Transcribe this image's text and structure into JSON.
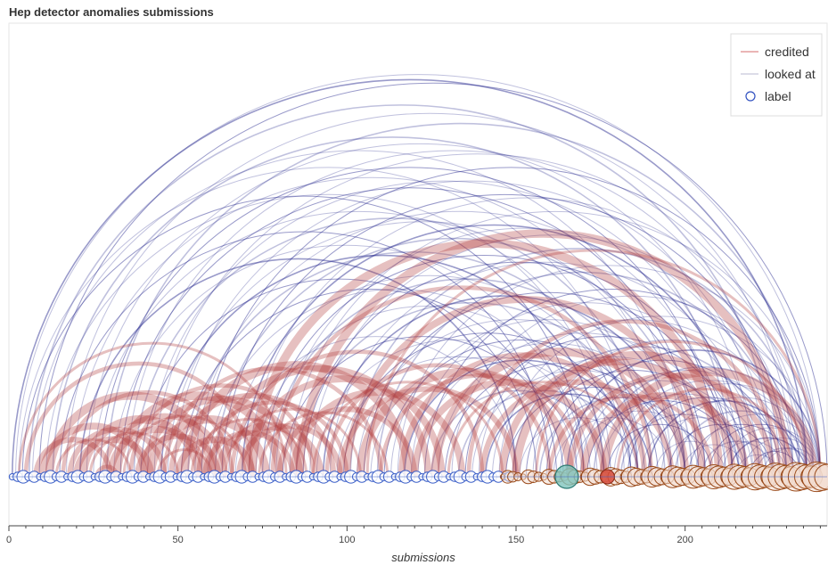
{
  "chart_data": {
    "type": "arc",
    "title": "Hep detector anomalies submissions",
    "xlabel": "submissions",
    "ylabel": "",
    "xlim": [
      0,
      242
    ],
    "x_ticks": [
      0,
      50,
      100,
      150,
      200
    ],
    "legend": {
      "placement": "top-right",
      "entries": [
        {
          "name": "credited",
          "marker": "line",
          "color": "#c0392b"
        },
        {
          "name": "looked at",
          "marker": "line",
          "color": "#a9a9c9"
        },
        {
          "name": "label",
          "marker": "circle",
          "color": "#3050c0"
        }
      ]
    },
    "series": [
      {
        "name": "credited",
        "color": "#b03a3a",
        "arcs": [
          [
            3,
            82
          ],
          [
            5,
            72
          ],
          [
            8,
            30
          ],
          [
            10,
            40
          ],
          [
            12,
            60
          ],
          [
            14,
            36
          ],
          [
            16,
            66
          ],
          [
            18,
            46
          ],
          [
            20,
            42
          ],
          [
            22,
            56
          ],
          [
            24,
            50
          ],
          [
            26,
            32
          ],
          [
            28,
            64
          ],
          [
            30,
            58
          ],
          [
            32,
            80
          ],
          [
            34,
            70
          ],
          [
            36,
            90
          ],
          [
            38,
            62
          ],
          [
            40,
            86
          ],
          [
            42,
            76
          ],
          [
            44,
            60
          ],
          [
            46,
            110
          ],
          [
            48,
            96
          ],
          [
            50,
            72
          ],
          [
            52,
            118
          ],
          [
            54,
            88
          ],
          [
            56,
            100
          ],
          [
            58,
            84
          ],
          [
            60,
            124
          ],
          [
            62,
            92
          ],
          [
            64,
            104
          ],
          [
            66,
            140
          ],
          [
            68,
            98
          ],
          [
            70,
            128
          ],
          [
            72,
            210
          ],
          [
            74,
            112
          ],
          [
            78,
            190
          ],
          [
            80,
            120
          ],
          [
            84,
            134
          ],
          [
            86,
            230
          ],
          [
            90,
            146
          ],
          [
            94,
            160
          ],
          [
            98,
            150
          ],
          [
            100,
            205
          ],
          [
            104,
            166
          ],
          [
            106,
            240
          ],
          [
            110,
            170
          ],
          [
            116,
            188
          ],
          [
            120,
            176
          ],
          [
            126,
            200
          ],
          [
            130,
            186
          ],
          [
            136,
            228
          ],
          [
            140,
            196
          ],
          [
            146,
            214
          ],
          [
            150,
            222
          ],
          [
            156,
            236
          ],
          [
            160,
            208
          ],
          [
            166,
            226
          ],
          [
            170,
            218
          ],
          [
            176,
            238
          ],
          [
            180,
            232
          ]
        ]
      },
      {
        "name": "looked at",
        "color": "#1d1f8a",
        "arcs": [
          [
            1,
            236
          ],
          [
            2,
            240
          ],
          [
            3,
            186
          ],
          [
            4,
            170
          ],
          [
            6,
            226
          ],
          [
            7,
            200
          ],
          [
            9,
            242
          ],
          [
            11,
            178
          ],
          [
            13,
            214
          ],
          [
            15,
            160
          ],
          [
            17,
            232
          ],
          [
            19,
            196
          ],
          [
            21,
            150
          ],
          [
            23,
            220
          ],
          [
            25,
            182
          ],
          [
            27,
            210
          ],
          [
            29,
            238
          ],
          [
            31,
            168
          ],
          [
            33,
            204
          ],
          [
            35,
            228
          ],
          [
            37,
            190
          ],
          [
            39,
            156
          ],
          [
            41,
            216
          ],
          [
            43,
            234
          ],
          [
            45,
            176
          ],
          [
            47,
            198
          ],
          [
            49,
            224
          ],
          [
            51,
            162
          ],
          [
            53,
            186
          ],
          [
            55,
            212
          ],
          [
            57,
            240
          ],
          [
            59,
            170
          ],
          [
            61,
            202
          ],
          [
            63,
            230
          ],
          [
            65,
            184
          ],
          [
            67,
            150
          ],
          [
            69,
            218
          ],
          [
            71,
            236
          ],
          [
            73,
            174
          ],
          [
            75,
            206
          ],
          [
            77,
            194
          ],
          [
            79,
            226
          ],
          [
            81,
            164
          ],
          [
            83,
            240
          ],
          [
            85,
            188
          ],
          [
            87,
            214
          ],
          [
            89,
            232
          ],
          [
            91,
            172
          ],
          [
            93,
            200
          ],
          [
            95,
            222
          ],
          [
            97,
            168
          ],
          [
            99,
            184
          ],
          [
            101,
            236
          ],
          [
            103,
            196
          ],
          [
            105,
            214
          ],
          [
            107,
            178
          ],
          [
            109,
            230
          ],
          [
            111,
            192
          ],
          [
            113,
            206
          ],
          [
            115,
            240
          ],
          [
            117,
            186
          ],
          [
            119,
            222
          ],
          [
            121,
            200
          ],
          [
            123,
            234
          ],
          [
            125,
            176
          ],
          [
            127,
            212
          ],
          [
            129,
            196
          ],
          [
            131,
            238
          ],
          [
            133,
            184
          ],
          [
            135,
            218
          ],
          [
            137,
            200
          ],
          [
            139,
            232
          ],
          [
            141,
            190
          ],
          [
            143,
            214
          ],
          [
            145,
            240
          ],
          [
            147,
            200
          ],
          [
            149,
            226
          ],
          [
            151,
            186
          ],
          [
            153,
            216
          ],
          [
            155,
            236
          ],
          [
            157,
            204
          ],
          [
            159,
            228
          ],
          [
            161,
            196
          ],
          [
            163,
            220
          ],
          [
            165,
            240
          ],
          [
            167,
            206
          ],
          [
            169,
            232
          ],
          [
            171,
            216
          ],
          [
            173,
            238
          ],
          [
            175,
            224
          ],
          [
            177,
            208
          ],
          [
            179,
            236
          ],
          [
            181,
            218
          ],
          [
            183,
            230
          ],
          [
            185,
            240
          ],
          [
            187,
            222
          ],
          [
            189,
            234
          ],
          [
            191,
            212
          ],
          [
            193,
            240
          ],
          [
            195,
            226
          ],
          [
            197,
            236
          ],
          [
            199,
            218
          ],
          [
            201,
            232
          ],
          [
            203,
            240
          ],
          [
            205,
            226
          ],
          [
            207,
            238
          ],
          [
            209,
            230
          ],
          [
            211,
            240
          ],
          [
            213,
            236
          ],
          [
            215,
            228
          ],
          [
            217,
            240
          ],
          [
            219,
            234
          ],
          [
            221,
            238
          ],
          [
            223,
            240
          ]
        ]
      }
    ],
    "nodes": [
      {
        "group": "blue",
        "x_range": [
          1,
          148
        ],
        "count": 92
      },
      {
        "group": "orange",
        "x_range": [
          146,
          242
        ],
        "count": 64
      },
      {
        "group": "teal",
        "x": 165,
        "size": "large"
      },
      {
        "group": "red",
        "x": 177,
        "size": "medium"
      }
    ]
  }
}
